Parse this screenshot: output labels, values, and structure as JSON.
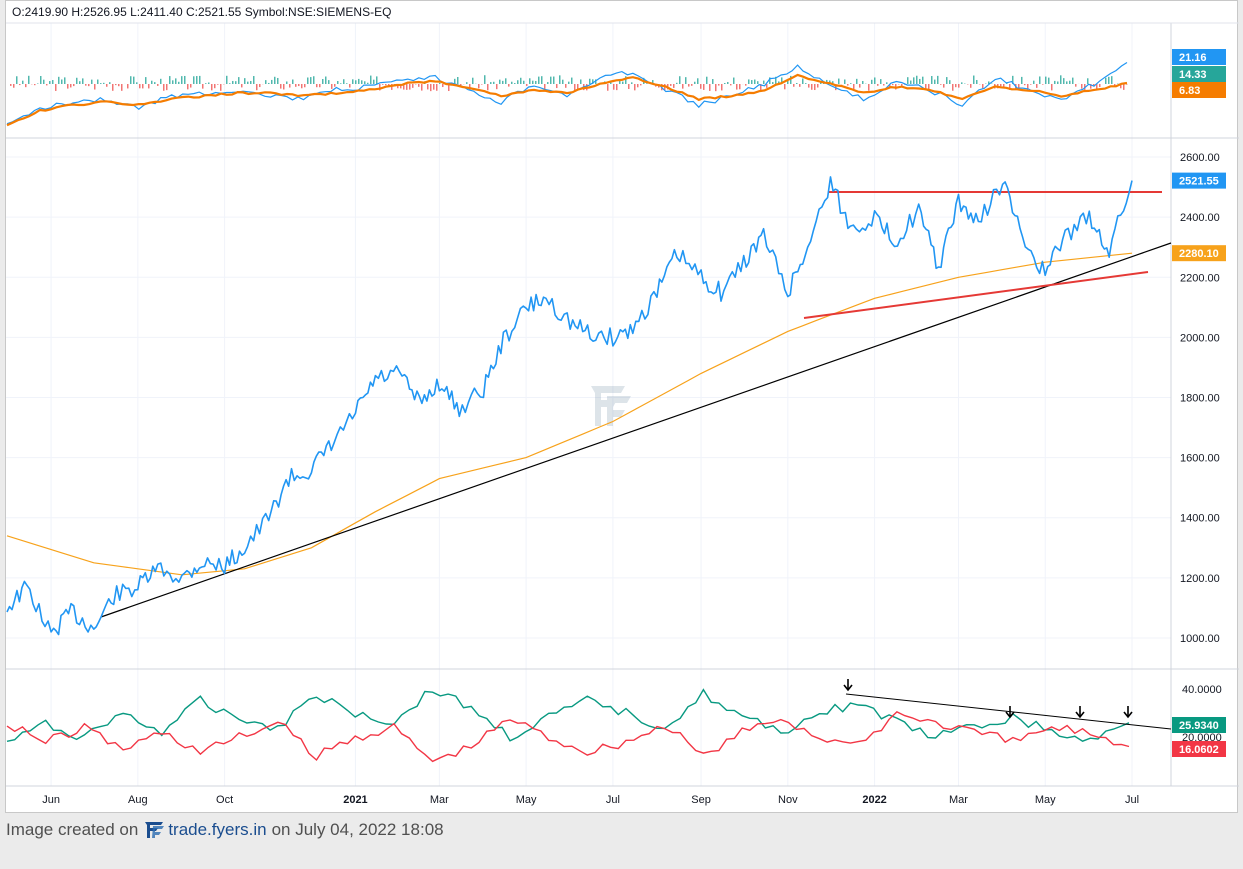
{
  "header": {
    "open": "O:2419.90",
    "high": "H:2526.95",
    "low": "L:2411.40",
    "close": "C:2521.55",
    "symbol": "Symbol:NSE:SIEMENS-EQ"
  },
  "footer": {
    "prefix": "Image created on",
    "brand": "trade.fyers.in",
    "suffix": "on July 04, 2022 18:08"
  },
  "colors": {
    "price_line": "#2196f3",
    "ma_line": "#f7a21b",
    "trend_red": "#e53935",
    "trend_black": "#000000",
    "osc_fast": "#2196f3",
    "osc_slow": "#f57c00",
    "hist_pos": "#26a69a",
    "hist_neg": "#ef5350",
    "adx_green": "#089981",
    "adx_red": "#f23645"
  },
  "chart_data": [
    {
      "type": "line",
      "panel": "price",
      "xlabel": "",
      "ylabel": "",
      "x_ticks": [
        "Jun",
        "Aug",
        "Oct",
        "2021",
        "Mar",
        "May",
        "Jul",
        "Sep",
        "Nov",
        "2022",
        "Mar",
        "May",
        "Jul"
      ],
      "y_ticks": [
        "1000.00",
        "1200.00",
        "1400.00",
        "1600.00",
        "1800.00",
        "2000.00",
        "2200.00",
        "2400.00",
        "2600.00"
      ],
      "ylim": [
        900,
        2660
      ],
      "series": [
        {
          "name": "",
          "x": [
            "2020-05-01",
            "2020-05-15",
            "2020-06-01",
            "2020-06-15",
            "2020-07-01",
            "2020-07-15",
            "2020-08-01",
            "2020-08-15",
            "2020-09-01",
            "2020-09-15",
            "2020-10-01",
            "2020-10-15",
            "2020-11-01",
            "2020-11-15",
            "2020-12-01",
            "2020-12-15",
            "2021-01-01",
            "2021-01-15",
            "2021-02-01",
            "2021-02-15",
            "2021-03-01",
            "2021-03-15",
            "2021-04-01",
            "2021-04-15",
            "2021-05-01",
            "2021-05-15",
            "2021-06-01",
            "2021-06-15",
            "2021-07-01",
            "2021-07-15",
            "2021-08-01",
            "2021-08-15",
            "2021-09-01",
            "2021-09-15",
            "2021-10-01",
            "2021-10-15",
            "2021-11-01",
            "2021-11-15",
            "2021-12-01",
            "2021-12-15",
            "2022-01-01",
            "2022-01-15",
            "2022-02-01",
            "2022-02-15",
            "2022-03-01",
            "2022-03-15",
            "2022-04-01",
            "2022-04-15",
            "2022-05-01",
            "2022-05-15",
            "2022-06-01",
            "2022-06-15",
            "2022-07-01"
          ],
          "values": [
            1100,
            1170,
            1010,
            1090,
            1030,
            1140,
            1170,
            1230,
            1200,
            1250,
            1240,
            1300,
            1400,
            1530,
            1560,
            1640,
            1750,
            1860,
            1880,
            1780,
            1850,
            1760,
            1830,
            1990,
            2100,
            2130,
            2050,
            2010,
            2000,
            2030,
            2150,
            2280,
            2200,
            2150,
            2250,
            2340,
            2150,
            2300,
            2520,
            2360,
            2400,
            2320,
            2420,
            2230,
            2450,
            2380,
            2520,
            2330,
            2210,
            2340,
            2400,
            2290,
            2521.55
          ]
        },
        {
          "name": "",
          "x": [
            "2020-05-01",
            "2020-07-01",
            "2020-09-01",
            "2020-10-15",
            "2020-12-01",
            "2021-01-15",
            "2021-03-01",
            "2021-05-01",
            "2021-07-01",
            "2021-09-01",
            "2021-11-01",
            "2022-01-01",
            "2022-03-01",
            "2022-05-01",
            "2022-07-01"
          ],
          "values": [
            1340,
            1250,
            1210,
            1230,
            1300,
            1420,
            1530,
            1600,
            1720,
            1880,
            2020,
            2130,
            2200,
            2250,
            2280.1
          ]
        }
      ],
      "price_tags": [
        "2521.55",
        "2280.10"
      ]
    },
    {
      "type": "line",
      "panel": "oscillator",
      "series": [
        {
          "name": "",
          "values": [
            0,
            6,
            8,
            9,
            6,
            10,
            11,
            12,
            10,
            9,
            12,
            13,
            15,
            16,
            12,
            8,
            14,
            10,
            16,
            18,
            12,
            7,
            10,
            14,
            20,
            13,
            9,
            15,
            12,
            7,
            16,
            12,
            9,
            14,
            21.16
          ]
        },
        {
          "name": "",
          "values": [
            0,
            5,
            7,
            8,
            7,
            9,
            10,
            11,
            11,
            10,
            11,
            12,
            14,
            15,
            13,
            10,
            12,
            11,
            14,
            16,
            13,
            9,
            10,
            12,
            17,
            14,
            11,
            13,
            12,
            9,
            13,
            12,
            10,
            12,
            14.33
          ]
        }
      ],
      "histogram_last": "6.83",
      "tags": [
        "21.16",
        "14.33",
        "6.83"
      ]
    },
    {
      "type": "line",
      "panel": "directional",
      "y_ticks": [
        "40.0000",
        "20.0000"
      ],
      "series": [
        {
          "name": "",
          "values": [
            18,
            25,
            20,
            30,
            22,
            35,
            28,
            24,
            38,
            30,
            26,
            40,
            32,
            20,
            28,
            35,
            30,
            24,
            38,
            28,
            22,
            30,
            34,
            26,
            20,
            24,
            28,
            22,
            18,
            25.934
          ]
        },
        {
          "name": "",
          "values": [
            26,
            18,
            24,
            15,
            22,
            14,
            20,
            26,
            12,
            20,
            24,
            10,
            16,
            28,
            20,
            14,
            18,
            25,
            12,
            22,
            28,
            20,
            16,
            30,
            26,
            22,
            18,
            24,
            22,
            16.0602
          ]
        }
      ],
      "tags": [
        "25.9340",
        "16.0602"
      ]
    }
  ]
}
